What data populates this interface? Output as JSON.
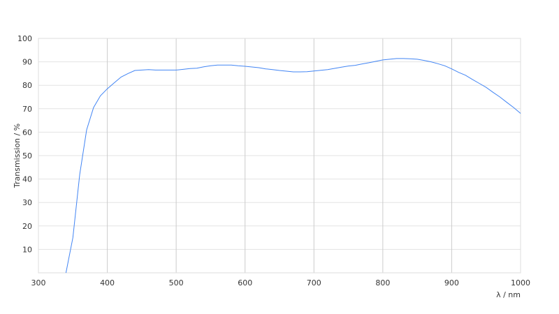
{
  "chart_data": {
    "type": "line",
    "title": "",
    "xlabel": "λ / nm",
    "ylabel": "Transmission / %",
    "xlim": [
      300,
      1000
    ],
    "ylim": [
      0,
      100
    ],
    "xticks": [
      300,
      400,
      500,
      600,
      700,
      800,
      900,
      1000
    ],
    "yticks": [
      10,
      20,
      30,
      40,
      50,
      60,
      70,
      80,
      90,
      100
    ],
    "grid": true,
    "line_color": "#4285f4",
    "series": [
      {
        "x": [
          340,
          350,
          360,
          370,
          380,
          390,
          400,
          410,
          420,
          430,
          440,
          450,
          460,
          470,
          480,
          490,
          500,
          510,
          520,
          530,
          540,
          550,
          560,
          570,
          580,
          590,
          600,
          610,
          620,
          630,
          640,
          650,
          660,
          670,
          680,
          690,
          700,
          710,
          720,
          730,
          740,
          750,
          760,
          770,
          780,
          790,
          800,
          810,
          820,
          830,
          840,
          850,
          860,
          870,
          880,
          890,
          900,
          910,
          920,
          930,
          940,
          950,
          960,
          970,
          980,
          990,
          1000
        ],
        "y": [
          0,
          15,
          42,
          61,
          70.5,
          75.5,
          78.5,
          81,
          83.5,
          85,
          86.3,
          86.5,
          86.7,
          86.5,
          86.5,
          86.5,
          86.5,
          86.8,
          87.1,
          87.3,
          87.9,
          88.3,
          88.6,
          88.6,
          88.6,
          88.3,
          88.1,
          87.8,
          87.5,
          87,
          86.7,
          86.3,
          86,
          85.7,
          85.7,
          85.8,
          86.1,
          86.4,
          86.7,
          87.2,
          87.7,
          88.2,
          88.5,
          89.1,
          89.6,
          90.2,
          90.8,
          91.1,
          91.4,
          91.4,
          91.3,
          91.1,
          90.6,
          90,
          89.2,
          88.3,
          87,
          85.5,
          84.3,
          82.5,
          80.8,
          79.1,
          77,
          75,
          72.7,
          70.5,
          68
        ]
      }
    ]
  }
}
